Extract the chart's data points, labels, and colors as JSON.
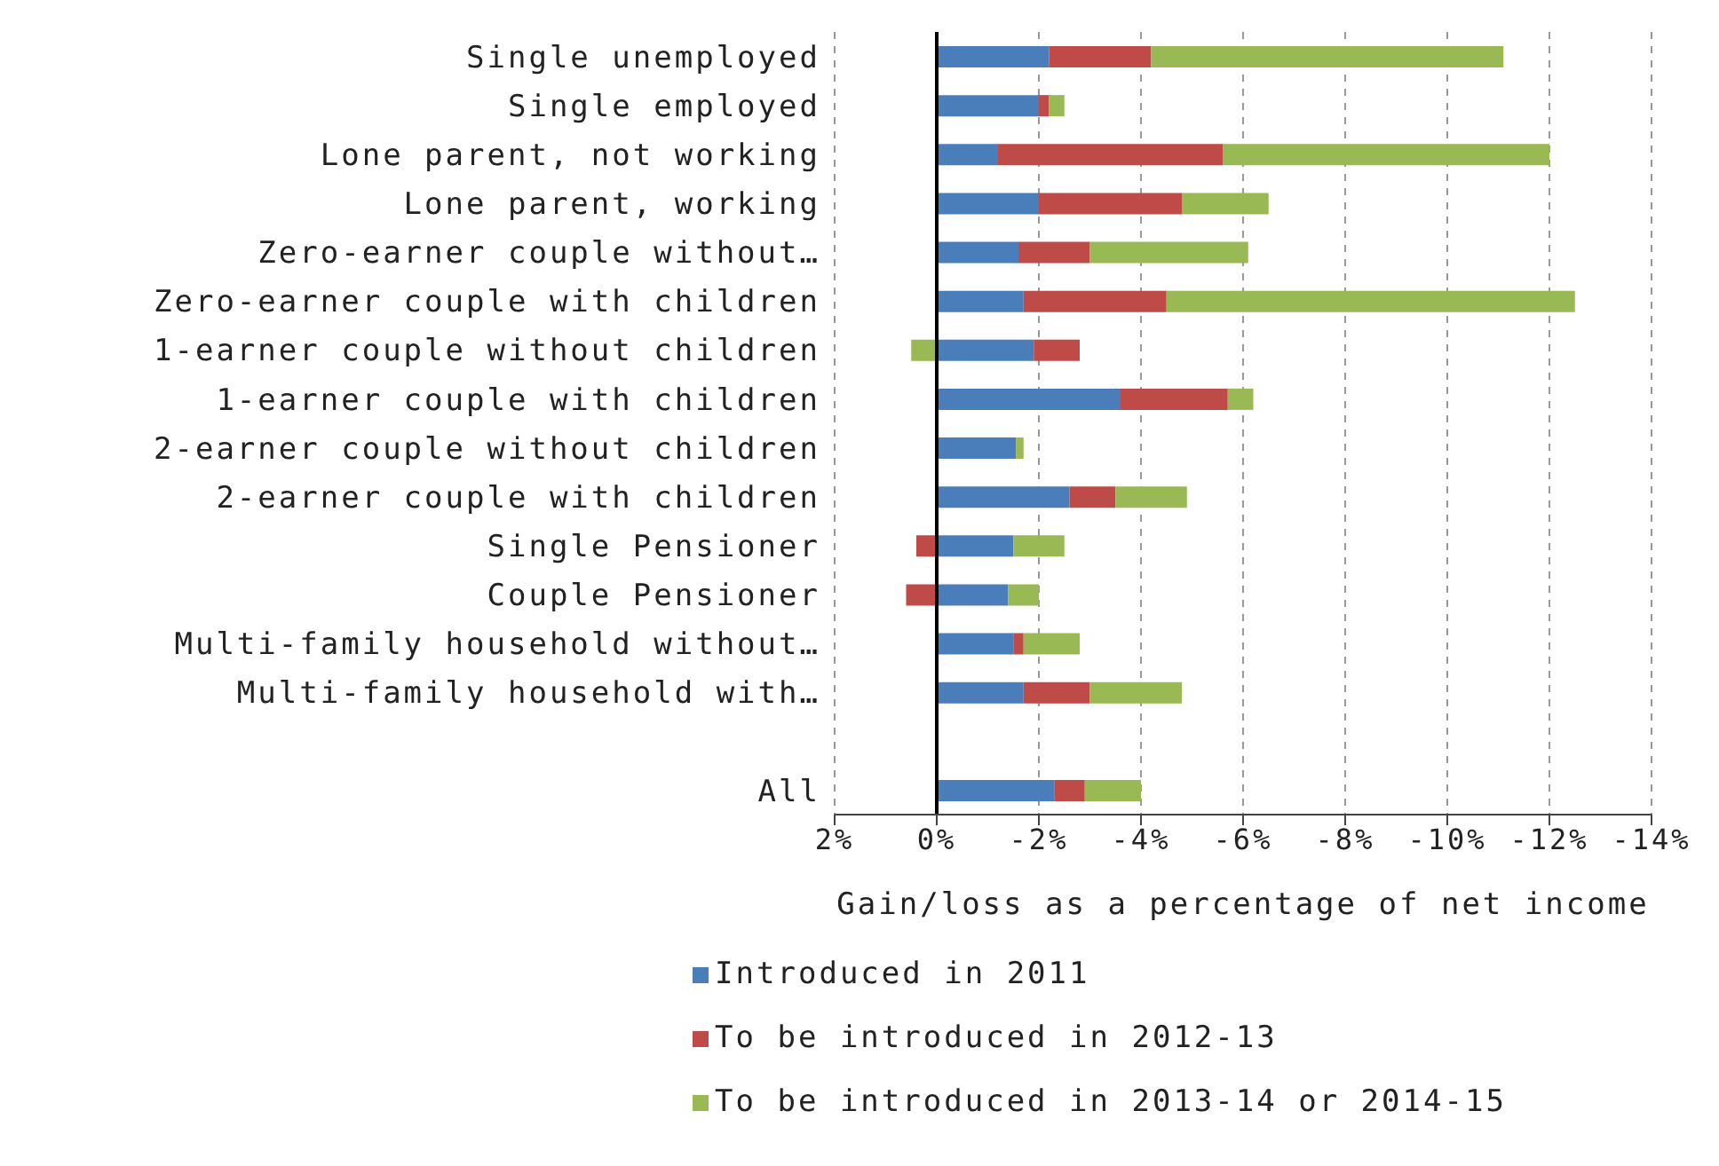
{
  "chart_data": {
    "type": "bar",
    "orientation": "horizontal",
    "stacked": true,
    "categories": [
      "Single unemployed",
      "Single employed",
      "Lone parent, not working",
      "Lone parent, working",
      "Zero-earner couple without…",
      "Zero-earner couple with children",
      "1-earner couple without children",
      "1-earner couple with children",
      "2-earner couple without children",
      "2-earner couple with children",
      "Single Pensioner",
      "Couple Pensioner",
      "Multi-family household without…",
      "Multi-family household with…",
      null,
      "All"
    ],
    "series": [
      {
        "name": "Introduced in 2011",
        "color": "#4a7ebb",
        "values": [
          -2.2,
          -2.0,
          -1.2,
          -2.0,
          -1.6,
          -1.7,
          -1.9,
          -3.6,
          -1.55,
          -2.6,
          -1.5,
          -1.4,
          -1.5,
          -1.7,
          null,
          -2.3
        ]
      },
      {
        "name": "To be introduced in 2012-13",
        "color": "#be4b48",
        "values": [
          -2.0,
          -0.2,
          -4.4,
          -2.8,
          -1.4,
          -2.8,
          -0.9,
          -2.1,
          0,
          -0.9,
          0.4,
          0.6,
          -0.2,
          -1.3,
          null,
          -0.6
        ]
      },
      {
        "name": "To be introduced in 2013-14 or 2014-15",
        "color": "#98b954",
        "values": [
          -6.9,
          -0.3,
          -6.4,
          -1.7,
          -3.1,
          -8.0,
          0.5,
          -0.5,
          -0.15,
          -1.4,
          -1.0,
          -0.6,
          -1.1,
          -1.8,
          null,
          -1.1
        ]
      }
    ],
    "xlim": [
      2,
      -14
    ],
    "xticks": [
      {
        "value": 2,
        "label": "2%"
      },
      {
        "value": 0,
        "label": "0%"
      },
      {
        "value": -2,
        "label": "-2%"
      },
      {
        "value": -4,
        "label": "-4%"
      },
      {
        "value": -6,
        "label": "-6%"
      },
      {
        "value": -8,
        "label": "-8%"
      },
      {
        "value": -10,
        "label": "-10%"
      },
      {
        "value": -12,
        "label": "-12%"
      },
      {
        "value": -14,
        "label": "-14%"
      }
    ],
    "xlabel": "Gain/loss as a percentage of net income",
    "grid": "x",
    "legend": "bottom"
  }
}
